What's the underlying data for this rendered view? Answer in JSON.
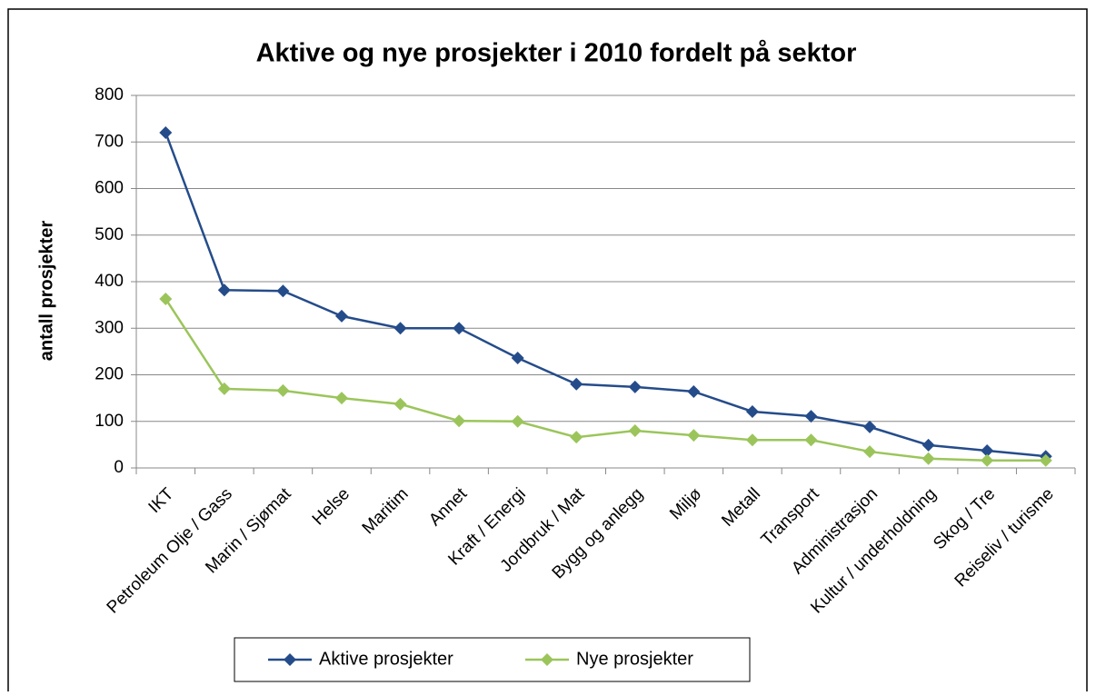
{
  "chart_data": {
    "type": "line",
    "title": "Aktive og nye prosjekter i 2010 fordelt på sektor",
    "y_label": "antall prosjekter",
    "categories": [
      "IKT",
      "Petroleum Olje / Gass",
      "Marin / Sjømat",
      "Helse",
      "Maritim",
      "Annet",
      "Kraft / Energi",
      "Jordbruk / Mat",
      "Bygg og anlegg",
      "Miljø",
      "Metall",
      "Transport",
      "Administrasjon",
      "Kultur / underholdning",
      "Skog / Tre",
      "Reiseliv / turisme"
    ],
    "series": [
      {
        "name": "Aktive prosjekter",
        "color": "#254c8a",
        "values": [
          720,
          382,
          380,
          326,
          300,
          300,
          236,
          180,
          174,
          164,
          121,
          111,
          88,
          49,
          37,
          25
        ]
      },
      {
        "name": "Nye prosjekter",
        "color": "#9bc55b",
        "values": [
          363,
          170,
          166,
          150,
          137,
          101,
          100,
          66,
          80,
          70,
          60,
          60,
          35,
          20,
          16,
          16
        ]
      }
    ],
    "ylim": [
      0,
      800
    ],
    "yticks": [
      0,
      100,
      200,
      300,
      400,
      500,
      600,
      700,
      800
    ],
    "grid": true,
    "legend": "bottom"
  }
}
